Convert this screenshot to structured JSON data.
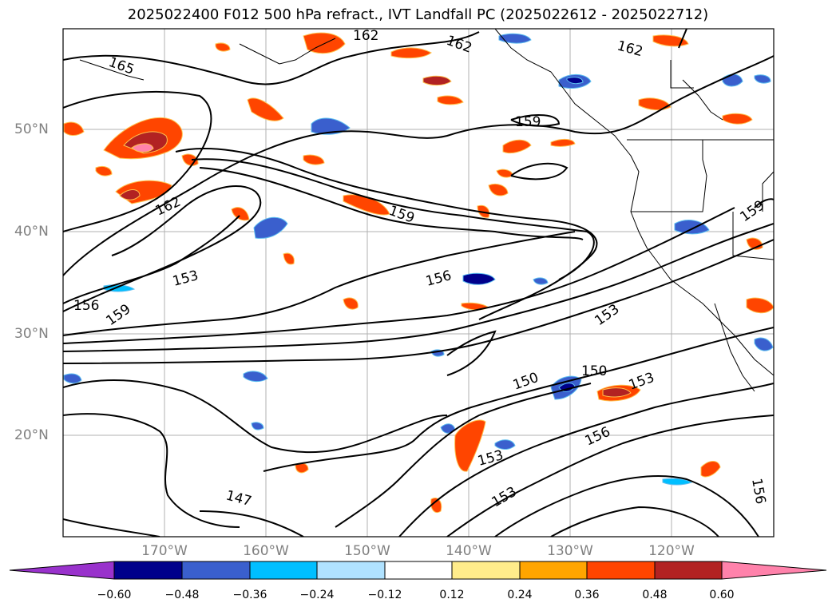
{
  "title": "2025022400 F012 500 hPa refract., IVT Landfall PC (2025022612 - 2025022712)",
  "lat_labels": [
    "50°N",
    "40°N",
    "30°N",
    "20°N"
  ],
  "lon_labels": [
    "170°W",
    "160°W",
    "150°W",
    "140°W",
    "130°W",
    "120°W"
  ],
  "colorbar": {
    "ticks": [
      "−0.60",
      "−0.48",
      "−0.36",
      "−0.24",
      "−0.12",
      "0.12",
      "0.24",
      "0.36",
      "0.48",
      "0.60"
    ],
    "colors": [
      "#9932cc",
      "#00008b",
      "#3a5fcd",
      "#00bfff",
      "#b0e2ff",
      "#ffffff",
      "#ffec8b",
      "#ffa500",
      "#ff4500",
      "#b22222",
      "#ff82ab"
    ]
  },
  "contour_labels": [
    "165",
    "162",
    "162",
    "162",
    "162",
    "159",
    "159",
    "159",
    "159",
    "156",
    "156",
    "156",
    "156",
    "153",
    "153",
    "153",
    "153",
    "153",
    "150",
    "150",
    "147"
  ]
}
